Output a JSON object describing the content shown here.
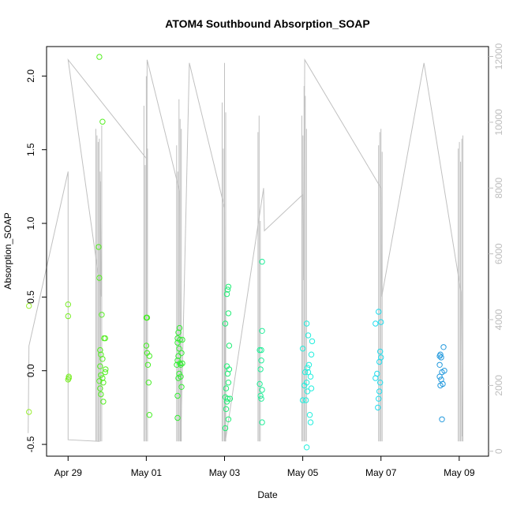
{
  "chart_data": {
    "type": "scatter",
    "title": "ATOM4 Southbound Absorption_SOAP",
    "xlabel": "Date",
    "ylabel": "Absorption_SOAP",
    "x_unit": "days since Apr 29",
    "xlim": [
      -0.55,
      10.75
    ],
    "ylim": [
      -0.58,
      2.2
    ],
    "y2lim": [
      -150,
      12300
    ],
    "x_ticks": [
      {
        "value": 0,
        "label": "Apr 29"
      },
      {
        "value": 2,
        "label": "May 01"
      },
      {
        "value": 4,
        "label": "May 03"
      },
      {
        "value": 6,
        "label": "May 05"
      },
      {
        "value": 8,
        "label": "May 07"
      },
      {
        "value": 10,
        "label": "May 09"
      }
    ],
    "y_ticks": [
      {
        "value": -0.5,
        "label": "-0.5"
      },
      {
        "value": 0.0,
        "label": "0.0"
      },
      {
        "value": 0.5,
        "label": "0.5"
      },
      {
        "value": 1.0,
        "label": "1.0"
      },
      {
        "value": 1.5,
        "label": "1.5"
      },
      {
        "value": 2.0,
        "label": "2.0"
      }
    ],
    "y2_ticks": [
      {
        "value": 0,
        "label": "0"
      },
      {
        "value": 2000,
        "label": "2000"
      },
      {
        "value": 4000,
        "label": "4000"
      },
      {
        "value": 6000,
        "label": "6000"
      },
      {
        "value": 8000,
        "label": "8000"
      },
      {
        "value": 10000,
        "label": "10000"
      },
      {
        "value": 12000,
        "label": "12000"
      }
    ],
    "secondary_series": {
      "name": "secondary axis trace",
      "color": "#c0c0c0",
      "points": [
        [
          -1.02,
          550
        ],
        [
          -1.0,
          3200
        ],
        [
          0.0,
          8500
        ],
        [
          0.0,
          350
        ],
        [
          0.8,
          300
        ],
        [
          0.82,
          8500
        ],
        [
          0.85,
          4700
        ],
        [
          0.0,
          11900
        ],
        [
          1.0,
          10400
        ],
        [
          2.0,
          8900
        ],
        [
          2.0,
          650
        ],
        [
          2.02,
          11900
        ],
        [
          2.85,
          7900
        ],
        [
          2.88,
          300
        ],
        [
          3.1,
          11800
        ],
        [
          4.0,
          7400
        ],
        [
          4.02,
          300
        ],
        [
          5.0,
          8000
        ],
        [
          5.02,
          6700
        ],
        [
          6.0,
          7800
        ],
        [
          6.02,
          5200
        ],
        [
          6.05,
          11900
        ],
        [
          8.0,
          8000
        ],
        [
          8.02,
          4700
        ],
        [
          9.1,
          11800
        ],
        [
          10.05,
          4800
        ],
        [
          10.08,
          450
        ]
      ],
      "spike_clusters": [
        {
          "x": 0.8,
          "tops": [
            9800,
            9600,
            9400,
            9500,
            8200,
            9900
          ]
        },
        {
          "x": 2.0,
          "tops": [
            10500,
            8700,
            11400,
            9200
          ]
        },
        {
          "x": 2.85,
          "tops": [
            9300,
            8500,
            10700,
            10100,
            9800
          ]
        },
        {
          "x": 4.0,
          "tops": [
            10600,
            9200,
            11800,
            10300
          ]
        },
        {
          "x": 4.9,
          "tops": [
            9700,
            10200,
            7000
          ]
        },
        {
          "x": 6.05,
          "tops": [
            10200,
            9600,
            11100,
            10800,
            9800
          ]
        },
        {
          "x": 8.0,
          "tops": [
            9300,
            9700,
            9800,
            9100
          ]
        },
        {
          "x": 10.05,
          "tops": [
            9200,
            9400,
            8800,
            9500,
            9600
          ]
        }
      ]
    },
    "series": [
      {
        "name": "Absorption_SOAP",
        "color_scale": "green-to-blue by date",
        "points": [
          {
            "x": -1.0,
            "y": 0.44,
            "color": "#99ee33"
          },
          {
            "x": -1.0,
            "y": -0.28,
            "color": "#99ee33"
          },
          {
            "x": 0.0,
            "y": 0.45,
            "color": "#77ee22"
          },
          {
            "x": 0.0,
            "y": 0.37,
            "color": "#77ee22"
          },
          {
            "x": 0.02,
            "y": -0.04,
            "color": "#77ee22"
          },
          {
            "x": 0.02,
            "y": -0.05,
            "color": "#77ee22"
          },
          {
            "x": 0.0,
            "y": -0.06,
            "color": "#77ee22"
          },
          {
            "x": 0.8,
            "y": 2.13,
            "color": "#55ee22"
          },
          {
            "x": 0.88,
            "y": 1.69,
            "color": "#55ee22"
          },
          {
            "x": 0.78,
            "y": 0.84,
            "color": "#55ee22"
          },
          {
            "x": 0.8,
            "y": 0.63,
            "color": "#55ee22"
          },
          {
            "x": 0.86,
            "y": 0.38,
            "color": "#55ee22"
          },
          {
            "x": 0.92,
            "y": 0.22,
            "color": "#55ee22"
          },
          {
            "x": 0.95,
            "y": 0.22,
            "color": "#55ee22"
          },
          {
            "x": 0.82,
            "y": 0.14,
            "color": "#55ee22"
          },
          {
            "x": 0.84,
            "y": 0.11,
            "color": "#55ee22"
          },
          {
            "x": 0.88,
            "y": 0.08,
            "color": "#55ee22"
          },
          {
            "x": 0.82,
            "y": 0.03,
            "color": "#55ee22"
          },
          {
            "x": 0.96,
            "y": 0.01,
            "color": "#55ee22"
          },
          {
            "x": 0.95,
            "y": -0.01,
            "color": "#55ee22"
          },
          {
            "x": 0.84,
            "y": -0.03,
            "color": "#55ee22"
          },
          {
            "x": 0.88,
            "y": -0.05,
            "color": "#55ee22"
          },
          {
            "x": 0.8,
            "y": -0.07,
            "color": "#55ee22"
          },
          {
            "x": 0.9,
            "y": -0.08,
            "color": "#55ee22"
          },
          {
            "x": 0.82,
            "y": -0.12,
            "color": "#55ee22"
          },
          {
            "x": 0.84,
            "y": -0.16,
            "color": "#55ee22"
          },
          {
            "x": 0.9,
            "y": -0.21,
            "color": "#55ee22"
          },
          {
            "x": 2.0,
            "y": 0.36,
            "color": "#44ee22"
          },
          {
            "x": 2.02,
            "y": 0.36,
            "color": "#44ee22"
          },
          {
            "x": 2.0,
            "y": 0.17,
            "color": "#44ee22"
          },
          {
            "x": 2.02,
            "y": 0.12,
            "color": "#44ee22"
          },
          {
            "x": 2.08,
            "y": 0.1,
            "color": "#44ee22"
          },
          {
            "x": 2.04,
            "y": 0.04,
            "color": "#44ee22"
          },
          {
            "x": 2.06,
            "y": -0.08,
            "color": "#44ee22"
          },
          {
            "x": 2.08,
            "y": -0.3,
            "color": "#44ee22"
          },
          {
            "x": 2.85,
            "y": 0.29,
            "color": "#33ee33"
          },
          {
            "x": 2.82,
            "y": 0.26,
            "color": "#33ee33"
          },
          {
            "x": 2.8,
            "y": 0.22,
            "color": "#33ee33"
          },
          {
            "x": 2.86,
            "y": 0.21,
            "color": "#33ee33"
          },
          {
            "x": 2.92,
            "y": 0.21,
            "color": "#33ee33"
          },
          {
            "x": 2.8,
            "y": 0.19,
            "color": "#33ee33"
          },
          {
            "x": 2.84,
            "y": 0.15,
            "color": "#33ee33"
          },
          {
            "x": 2.9,
            "y": 0.12,
            "color": "#33ee33"
          },
          {
            "x": 2.82,
            "y": 0.1,
            "color": "#33ee33"
          },
          {
            "x": 2.8,
            "y": 0.07,
            "color": "#33ee33"
          },
          {
            "x": 2.86,
            "y": 0.05,
            "color": "#33ee33"
          },
          {
            "x": 2.78,
            "y": 0.04,
            "color": "#33ee33"
          },
          {
            "x": 2.88,
            "y": 0.04,
            "color": "#33ee33"
          },
          {
            "x": 2.92,
            "y": 0.05,
            "color": "#33ee33"
          },
          {
            "x": 2.84,
            "y": -0.02,
            "color": "#33ee33"
          },
          {
            "x": 2.88,
            "y": -0.04,
            "color": "#33ee33"
          },
          {
            "x": 2.82,
            "y": -0.05,
            "color": "#33ee33"
          },
          {
            "x": 2.9,
            "y": -0.11,
            "color": "#33ee33"
          },
          {
            "x": 2.8,
            "y": -0.17,
            "color": "#33ee33"
          },
          {
            "x": 2.8,
            "y": -0.32,
            "color": "#33ee33"
          },
          {
            "x": 4.1,
            "y": 0.57,
            "color": "#22ee77"
          },
          {
            "x": 4.08,
            "y": 0.55,
            "color": "#22ee77"
          },
          {
            "x": 4.06,
            "y": 0.52,
            "color": "#22ee77"
          },
          {
            "x": 4.1,
            "y": 0.39,
            "color": "#22ee77"
          },
          {
            "x": 4.02,
            "y": 0.32,
            "color": "#22ee77"
          },
          {
            "x": 4.12,
            "y": 0.17,
            "color": "#22ee77"
          },
          {
            "x": 4.06,
            "y": 0.03,
            "color": "#22ee77"
          },
          {
            "x": 4.12,
            "y": 0.01,
            "color": "#22ee77"
          },
          {
            "x": 4.08,
            "y": -0.02,
            "color": "#22ee77"
          },
          {
            "x": 4.1,
            "y": -0.08,
            "color": "#22ee77"
          },
          {
            "x": 4.04,
            "y": -0.12,
            "color": "#22ee77"
          },
          {
            "x": 4.02,
            "y": -0.18,
            "color": "#22ee77"
          },
          {
            "x": 4.08,
            "y": -0.19,
            "color": "#22ee77"
          },
          {
            "x": 4.14,
            "y": -0.19,
            "color": "#22ee77"
          },
          {
            "x": 4.06,
            "y": -0.21,
            "color": "#22ee77"
          },
          {
            "x": 4.04,
            "y": -0.26,
            "color": "#22ee77"
          },
          {
            "x": 4.1,
            "y": -0.33,
            "color": "#22ee77"
          },
          {
            "x": 4.02,
            "y": -0.39,
            "color": "#22ee77"
          },
          {
            "x": 4.96,
            "y": 0.74,
            "color": "#22ee99"
          },
          {
            "x": 4.96,
            "y": 0.27,
            "color": "#22ee99"
          },
          {
            "x": 4.9,
            "y": 0.14,
            "color": "#22ee99"
          },
          {
            "x": 4.94,
            "y": 0.14,
            "color": "#22ee99"
          },
          {
            "x": 4.94,
            "y": 0.07,
            "color": "#22ee99"
          },
          {
            "x": 4.92,
            "y": 0.01,
            "color": "#22ee99"
          },
          {
            "x": 4.9,
            "y": -0.09,
            "color": "#22ee99"
          },
          {
            "x": 4.96,
            "y": -0.13,
            "color": "#22ee99"
          },
          {
            "x": 4.92,
            "y": -0.17,
            "color": "#22ee99"
          },
          {
            "x": 4.94,
            "y": -0.19,
            "color": "#22ee99"
          },
          {
            "x": 4.96,
            "y": -0.35,
            "color": "#22ee99"
          },
          {
            "x": 6.1,
            "y": 0.32,
            "color": "#22eedd"
          },
          {
            "x": 6.14,
            "y": 0.24,
            "color": "#22eedd"
          },
          {
            "x": 6.24,
            "y": 0.2,
            "color": "#22eedd"
          },
          {
            "x": 6.0,
            "y": 0.15,
            "color": "#22eedd"
          },
          {
            "x": 6.22,
            "y": 0.11,
            "color": "#22eedd"
          },
          {
            "x": 6.16,
            "y": 0.04,
            "color": "#22eedd"
          },
          {
            "x": 6.12,
            "y": 0.02,
            "color": "#22eedd"
          },
          {
            "x": 6.06,
            "y": -0.01,
            "color": "#22eedd"
          },
          {
            "x": 6.14,
            "y": -0.01,
            "color": "#22eedd"
          },
          {
            "x": 6.2,
            "y": -0.04,
            "color": "#22eedd"
          },
          {
            "x": 6.1,
            "y": -0.08,
            "color": "#22eedd"
          },
          {
            "x": 6.04,
            "y": -0.1,
            "color": "#22eedd"
          },
          {
            "x": 6.22,
            "y": -0.12,
            "color": "#22eedd"
          },
          {
            "x": 6.12,
            "y": -0.14,
            "color": "#22eedd"
          },
          {
            "x": 6.0,
            "y": -0.2,
            "color": "#22eedd"
          },
          {
            "x": 6.08,
            "y": -0.2,
            "color": "#22eedd"
          },
          {
            "x": 6.18,
            "y": -0.3,
            "color": "#22eedd"
          },
          {
            "x": 6.2,
            "y": -0.35,
            "color": "#22eedd"
          },
          {
            "x": 6.1,
            "y": -0.52,
            "color": "#22eedd"
          },
          {
            "x": 7.94,
            "y": 0.4,
            "color": "#22ddee"
          },
          {
            "x": 7.86,
            "y": 0.32,
            "color": "#22ddee"
          },
          {
            "x": 8.0,
            "y": 0.33,
            "color": "#22ddee"
          },
          {
            "x": 7.98,
            "y": 0.13,
            "color": "#22ddee"
          },
          {
            "x": 8.0,
            "y": 0.09,
            "color": "#22ddee"
          },
          {
            "x": 7.96,
            "y": 0.06,
            "color": "#22ddee"
          },
          {
            "x": 7.9,
            "y": -0.02,
            "color": "#22ddee"
          },
          {
            "x": 7.86,
            "y": -0.05,
            "color": "#22ddee"
          },
          {
            "x": 7.98,
            "y": -0.08,
            "color": "#22ddee"
          },
          {
            "x": 7.96,
            "y": -0.14,
            "color": "#22ddee"
          },
          {
            "x": 7.94,
            "y": -0.19,
            "color": "#22ddee"
          },
          {
            "x": 7.92,
            "y": -0.25,
            "color": "#22ddee"
          },
          {
            "x": 9.52,
            "y": 0.11,
            "color": "#2299dd"
          },
          {
            "x": 9.5,
            "y": 0.1,
            "color": "#2299dd"
          },
          {
            "x": 9.54,
            "y": 0.09,
            "color": "#2299dd"
          },
          {
            "x": 9.5,
            "y": 0.04,
            "color": "#2299dd"
          },
          {
            "x": 9.6,
            "y": 0.16,
            "color": "#2299dd"
          },
          {
            "x": 9.56,
            "y": -0.01,
            "color": "#2299dd"
          },
          {
            "x": 9.62,
            "y": 0.0,
            "color": "#2299dd"
          },
          {
            "x": 9.5,
            "y": -0.04,
            "color": "#2299dd"
          },
          {
            "x": 9.54,
            "y": -0.06,
            "color": "#2299dd"
          },
          {
            "x": 9.58,
            "y": -0.09,
            "color": "#2299dd"
          },
          {
            "x": 9.52,
            "y": -0.1,
            "color": "#2299dd"
          },
          {
            "x": 9.56,
            "y": -0.33,
            "color": "#2299dd"
          }
        ]
      }
    ]
  }
}
